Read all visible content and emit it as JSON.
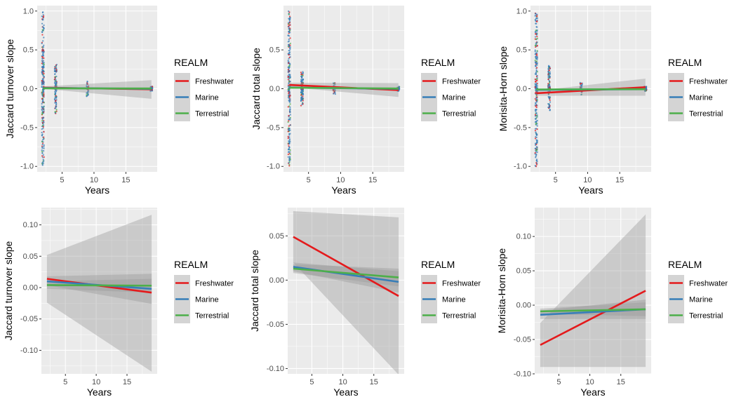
{
  "figure": {
    "colors": {
      "Freshwater": "#E41A1C",
      "Marine": "#377EB8",
      "Terrestrial": "#4DAF4A",
      "panel_bg": "#EBEBEB",
      "grid": "#FFFFFF",
      "ribbon": "#999999"
    }
  },
  "chart_data": [
    {
      "type": "scatter",
      "xlabel": "Years",
      "ylabel": "Jaccard turnover slope",
      "xlim": [
        1.1,
        19.9
      ],
      "ylim": [
        -1.07,
        1.07
      ],
      "xticks": [
        5,
        10,
        15
      ],
      "yticks": [
        -1.0,
        -0.5,
        0.0,
        0.5,
        1.0
      ],
      "ytick_labels": [
        "-1.0",
        "-0.5",
        "0.0",
        "0.5",
        "1.0"
      ],
      "grid": true,
      "legend": {
        "title": "REALM",
        "entries": [
          "Freshwater",
          "Marine",
          "Terrestrial"
        ],
        "placement": "right"
      },
      "points_x": [
        2,
        4,
        9,
        19
      ],
      "point_spread": [
        1.0,
        0.32,
        0.1,
        0.03
      ],
      "fits": [
        {
          "name": "Freshwater",
          "x": [
            2,
            19
          ],
          "y": [
            0.014,
            -0.008
          ],
          "ci_lower_y": [
            0.0,
            -0.13
          ],
          "ci_upper_y": [
            0.03,
            0.11
          ]
        },
        {
          "name": "Marine",
          "x": [
            2,
            19
          ],
          "y": [
            0.01,
            -0.002
          ],
          "ci_lower_y": [
            0.005,
            -0.02
          ],
          "ci_upper_y": [
            0.015,
            0.015
          ]
        },
        {
          "name": "Terrestrial",
          "x": [
            2,
            19
          ],
          "y": [
            0.005,
            0.003
          ],
          "ci_lower_y": [
            0.0,
            -0.01
          ],
          "ci_upper_y": [
            0.01,
            0.015
          ]
        }
      ]
    },
    {
      "type": "scatter",
      "xlabel": "Years",
      "ylabel": "Jaccard total slope",
      "xlim": [
        1.1,
        19.9
      ],
      "ylim": [
        -1.07,
        1.07
      ],
      "xticks": [
        5,
        10,
        15
      ],
      "yticks": [
        -1.0,
        -0.5,
        0.0,
        0.5
      ],
      "ytick_labels": [
        "-1.0",
        "-0.5",
        "0.0",
        "0.5"
      ],
      "grid": true,
      "legend": {
        "title": "REALM",
        "entries": [
          "Freshwater",
          "Marine",
          "Terrestrial"
        ],
        "placement": "right"
      },
      "points_x": [
        2,
        4,
        9,
        19
      ],
      "point_spread": [
        1.0,
        0.22,
        0.08,
        0.03
      ],
      "fits": [
        {
          "name": "Freshwater",
          "x": [
            2,
            19
          ],
          "y": [
            0.049,
            -0.018
          ],
          "ci_lower_y": [
            0.02,
            -0.107
          ],
          "ci_upper_y": [
            0.078,
            0.072
          ]
        },
        {
          "name": "Marine",
          "x": [
            2,
            19
          ],
          "y": [
            0.015,
            -0.002
          ],
          "ci_lower_y": [
            0.01,
            -0.015
          ],
          "ci_upper_y": [
            0.02,
            0.011
          ]
        },
        {
          "name": "Terrestrial",
          "x": [
            2,
            19
          ],
          "y": [
            0.013,
            0.003
          ],
          "ci_lower_y": [
            0.007,
            -0.008
          ],
          "ci_upper_y": [
            0.019,
            0.014
          ]
        }
      ]
    },
    {
      "type": "scatter",
      "xlabel": "Years",
      "ylabel": "Morisita-Horn slope",
      "xlim": [
        1.1,
        19.9
      ],
      "ylim": [
        -1.07,
        1.07
      ],
      "xticks": [
        5,
        10,
        15
      ],
      "yticks": [
        -1.0,
        -0.5,
        0.0,
        0.5,
        1.0
      ],
      "ytick_labels": [
        "-1.0",
        "-0.5",
        "0.0",
        "0.5",
        "1.0"
      ],
      "grid": true,
      "legend": {
        "title": "REALM",
        "entries": [
          "Freshwater",
          "Marine",
          "Terrestrial"
        ],
        "placement": "right"
      },
      "points_x": [
        2,
        4,
        9,
        19
      ],
      "point_spread": [
        1.0,
        0.3,
        0.08,
        0.03
      ],
      "fits": [
        {
          "name": "Freshwater",
          "x": [
            2,
            19
          ],
          "y": [
            -0.058,
            0.02
          ],
          "ci_lower_y": [
            -0.09,
            -0.09
          ],
          "ci_upper_y": [
            -0.025,
            0.13
          ]
        },
        {
          "name": "Marine",
          "x": [
            2,
            19
          ],
          "y": [
            -0.014,
            -0.006
          ],
          "ci_lower_y": [
            -0.02,
            -0.02
          ],
          "ci_upper_y": [
            -0.008,
            0.008
          ]
        },
        {
          "name": "Terrestrial",
          "x": [
            2,
            19
          ],
          "y": [
            -0.009,
            -0.006
          ],
          "ci_lower_y": [
            -0.013,
            -0.016
          ],
          "ci_upper_y": [
            -0.005,
            0.004
          ]
        }
      ]
    },
    {
      "type": "line",
      "xlabel": "Years",
      "ylabel": "Jaccard turnover slope",
      "xlim": [
        1.1,
        19.9
      ],
      "ylim": [
        -0.1375,
        0.1275
      ],
      "xticks": [
        5,
        10,
        15
      ],
      "yticks": [
        -0.1,
        -0.05,
        0.0,
        0.05,
        0.1
      ],
      "ytick_labels": [
        "-0.10",
        "-0.05",
        "0.00",
        "0.05",
        "0.10"
      ],
      "grid": true,
      "legend": {
        "title": "REALM",
        "entries": [
          "Freshwater",
          "Marine",
          "Terrestrial"
        ],
        "placement": "right"
      },
      "fits": [
        {
          "name": "Freshwater",
          "x": [
            2,
            19
          ],
          "y": [
            0.014,
            -0.008
          ],
          "ci_lower_y": [
            -0.024,
            -0.134
          ],
          "ci_upper_y": [
            0.052,
            0.116
          ]
        },
        {
          "name": "Marine",
          "x": [
            2,
            19
          ],
          "y": [
            0.01,
            -0.002
          ],
          "ci_lower_y": [
            0.004,
            -0.026
          ],
          "ci_upper_y": [
            0.018,
            0.022
          ]
        },
        {
          "name": "Terrestrial",
          "x": [
            2,
            19
          ],
          "y": [
            0.004,
            0.003
          ],
          "ci_lower_y": [
            -0.002,
            -0.008
          ],
          "ci_upper_y": [
            0.01,
            0.014
          ]
        }
      ]
    },
    {
      "type": "line",
      "xlabel": "Years",
      "ylabel": "Jaccard total slope",
      "xlim": [
        1.1,
        19.9
      ],
      "ylim": [
        -0.106,
        0.082
      ],
      "xticks": [
        5,
        10,
        15
      ],
      "yticks": [
        -0.1,
        -0.05,
        0.0,
        0.05
      ],
      "ytick_labels": [
        "-0.10",
        "-0.05",
        "0.00",
        "0.05"
      ],
      "grid": true,
      "legend": {
        "title": "REALM",
        "entries": [
          "Freshwater",
          "Marine",
          "Terrestrial"
        ],
        "placement": "right"
      },
      "fits": [
        {
          "name": "Freshwater",
          "x": [
            2,
            19
          ],
          "y": [
            0.049,
            -0.018
          ],
          "ci_lower_y": [
            0.02,
            -0.107
          ],
          "ci_upper_y": [
            0.078,
            0.071
          ]
        },
        {
          "name": "Marine",
          "x": [
            2,
            19
          ],
          "y": [
            0.015,
            -0.002
          ],
          "ci_lower_y": [
            0.01,
            -0.014
          ],
          "ci_upper_y": [
            0.02,
            0.01
          ]
        },
        {
          "name": "Terrestrial",
          "x": [
            2,
            19
          ],
          "y": [
            0.013,
            0.003
          ],
          "ci_lower_y": [
            0.008,
            -0.007
          ],
          "ci_upper_y": [
            0.018,
            0.013
          ]
        }
      ]
    },
    {
      "type": "line",
      "xlabel": "Years",
      "ylabel": "Morisita-Horn slope",
      "xlim": [
        1.1,
        19.9
      ],
      "ylim": [
        -0.1,
        0.142
      ],
      "xticks": [
        5,
        10,
        15
      ],
      "yticks": [
        -0.1,
        -0.05,
        0.0,
        0.05,
        0.1
      ],
      "ytick_labels": [
        "-0.10",
        "-0.05",
        "0.00",
        "0.05",
        "0.10"
      ],
      "grid": true,
      "legend": {
        "title": "REALM",
        "entries": [
          "Freshwater",
          "Marine",
          "Terrestrial"
        ],
        "placement": "right"
      },
      "fits": [
        {
          "name": "Freshwater",
          "x": [
            2,
            19
          ],
          "y": [
            -0.058,
            0.021
          ],
          "ci_lower_y": [
            -0.09,
            -0.09
          ],
          "ci_upper_y": [
            -0.026,
            0.132
          ]
        },
        {
          "name": "Marine",
          "x": [
            2,
            19
          ],
          "y": [
            -0.014,
            -0.006
          ],
          "ci_lower_y": [
            -0.02,
            -0.02
          ],
          "ci_upper_y": [
            -0.008,
            0.008
          ]
        },
        {
          "name": "Terrestrial",
          "x": [
            2,
            19
          ],
          "y": [
            -0.009,
            -0.006
          ],
          "ci_lower_y": [
            -0.013,
            -0.016
          ],
          "ci_upper_y": [
            -0.005,
            0.004
          ]
        }
      ]
    }
  ]
}
